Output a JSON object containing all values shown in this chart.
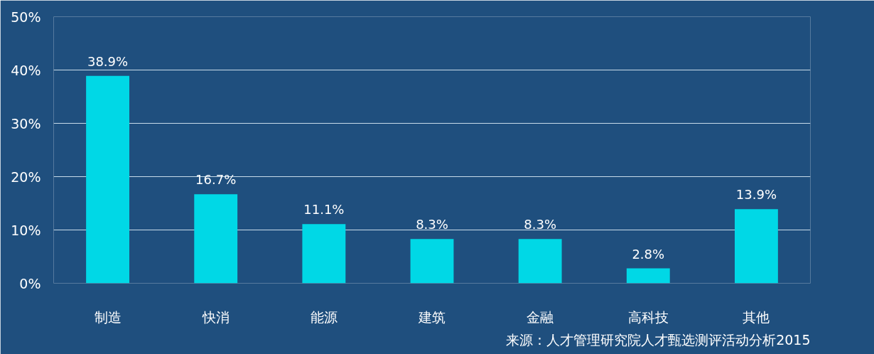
{
  "chart_data": {
    "type": "bar",
    "categories": [
      "制造",
      "快消",
      "能源",
      "建筑",
      "金融",
      "高科技",
      "其他"
    ],
    "values": [
      38.9,
      16.7,
      11.1,
      8.3,
      8.3,
      2.8,
      13.9
    ],
    "value_labels": [
      "38.9%",
      "16.7%",
      "11.1%",
      "8.3%",
      "8.3%",
      "2.8%",
      "13.9%"
    ],
    "color": "#00d8e6",
    "ylim": [
      0,
      50
    ],
    "yticks": [
      {
        "value": 0,
        "label": "0%"
      },
      {
        "value": 10,
        "label": "10%"
      },
      {
        "value": 20,
        "label": "20%"
      },
      {
        "value": 30,
        "label": "30%"
      },
      {
        "value": 40,
        "label": "40%"
      },
      {
        "value": 50,
        "label": "50%"
      }
    ],
    "grid": "y",
    "annotations": [
      "来源：人才管理研究院人才甄选测评活动分析2015"
    ]
  }
}
